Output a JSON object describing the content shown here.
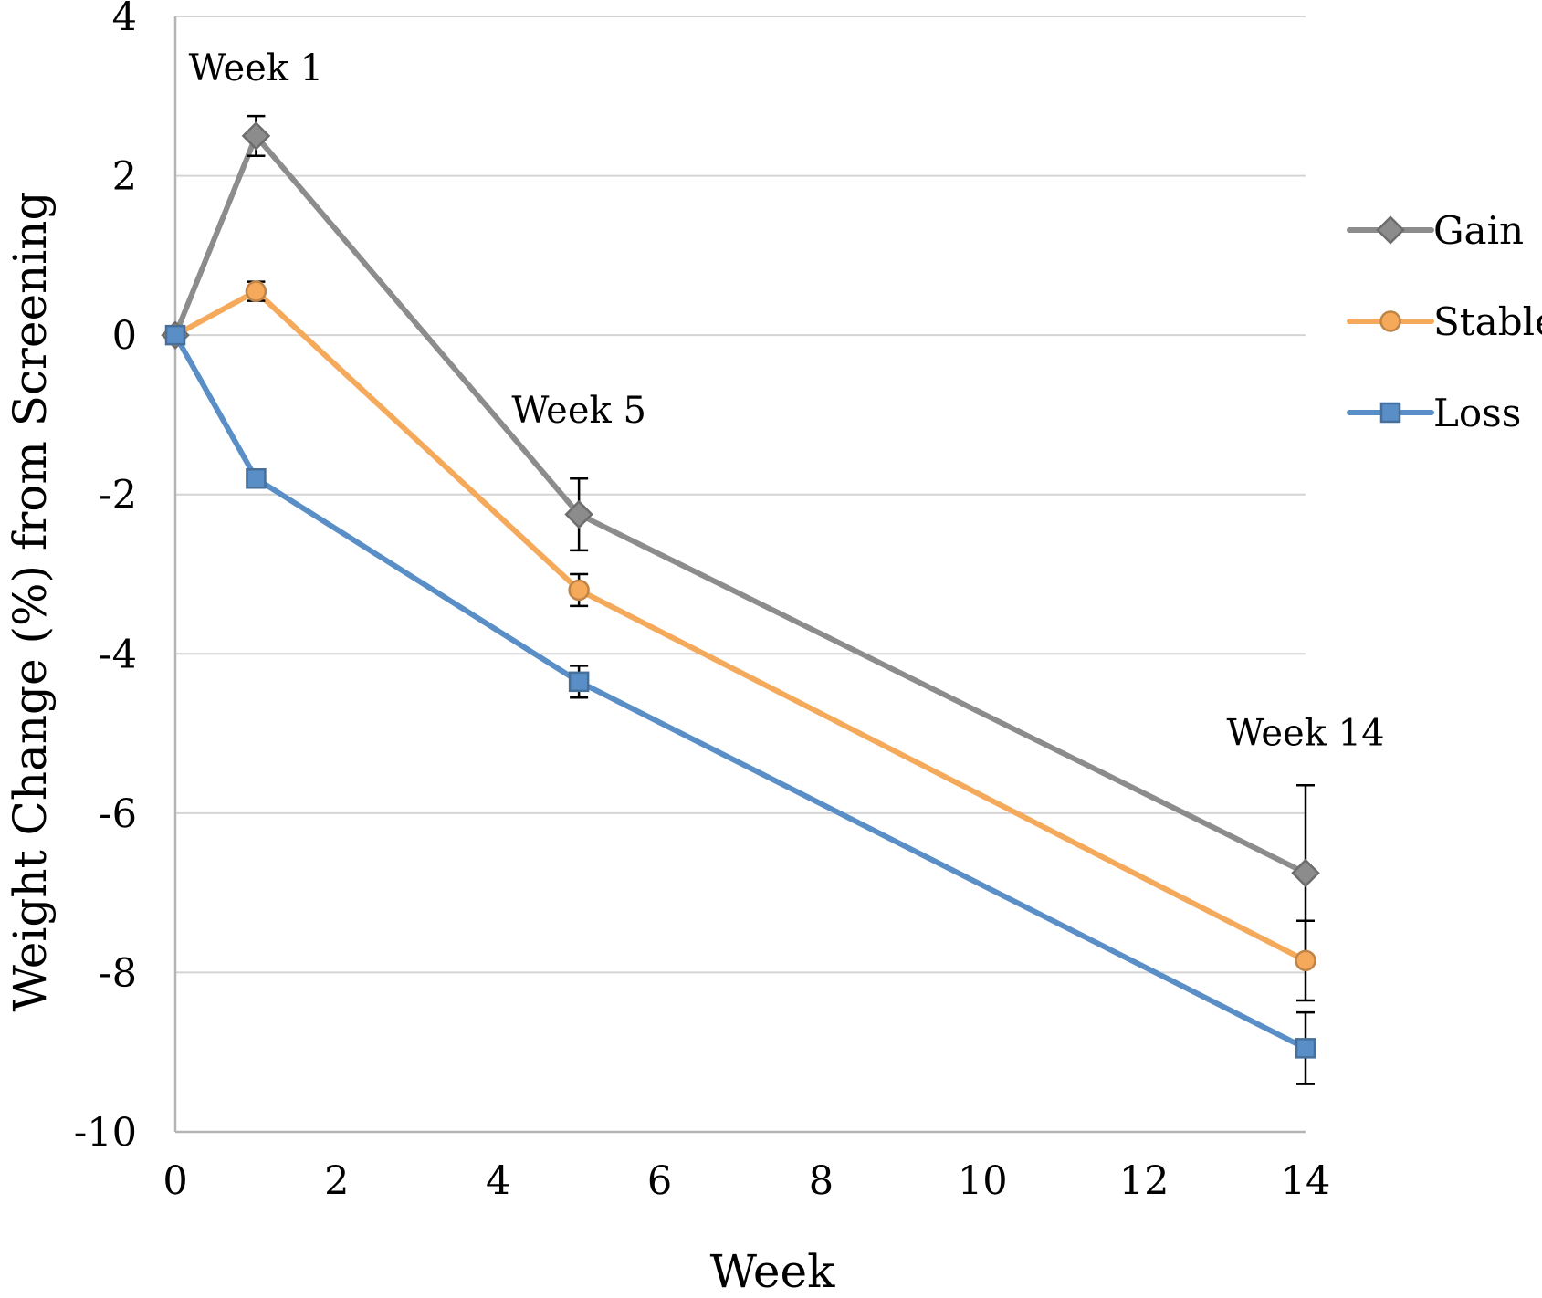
{
  "chart_data": {
    "type": "line",
    "title": "",
    "xlabel": "Week",
    "ylabel": "Weight Change (%) from Screening",
    "xlim": [
      0,
      14
    ],
    "ylim": [
      -10,
      4
    ],
    "x_ticks": [
      0,
      2,
      4,
      6,
      8,
      10,
      12,
      14
    ],
    "y_ticks": [
      -10,
      -8,
      -6,
      -4,
      -2,
      0,
      2,
      4
    ],
    "x_tick_labels": [
      "0",
      "2",
      "4",
      "6",
      "8",
      "10",
      "12",
      "14"
    ],
    "y_tick_labels": [
      "-10",
      "-8",
      "-6",
      "-4",
      "-2",
      "0",
      "2",
      "4"
    ],
    "grid": "horizontal",
    "legend_position": "right",
    "x": [
      0,
      1,
      5,
      14
    ],
    "series": [
      {
        "name": "Gain",
        "marker": "diamond",
        "color": "#8c8c8c",
        "values": [
          0,
          2.5,
          -2.25,
          -6.75
        ],
        "error": [
          0,
          0.25,
          0.45,
          1.1
        ]
      },
      {
        "name": "Stable",
        "marker": "circle",
        "color": "#f5a95a",
        "values": [
          0,
          0.55,
          -3.2,
          -7.85
        ],
        "error": [
          0,
          0.12,
          0.2,
          0.5
        ]
      },
      {
        "name": "Loss",
        "marker": "square",
        "color": "#5a8ec6",
        "values": [
          0,
          -1.8,
          -4.35,
          -8.95
        ],
        "error": [
          0,
          0,
          0.2,
          0.45
        ]
      }
    ],
    "annotations": [
      {
        "text": "Week 1",
        "x": 1,
        "y": 3.2
      },
      {
        "text": "Week 5",
        "x": 5,
        "y": -1.1
      },
      {
        "text": "Week 14",
        "x": 14,
        "y": -5.15
      }
    ]
  }
}
